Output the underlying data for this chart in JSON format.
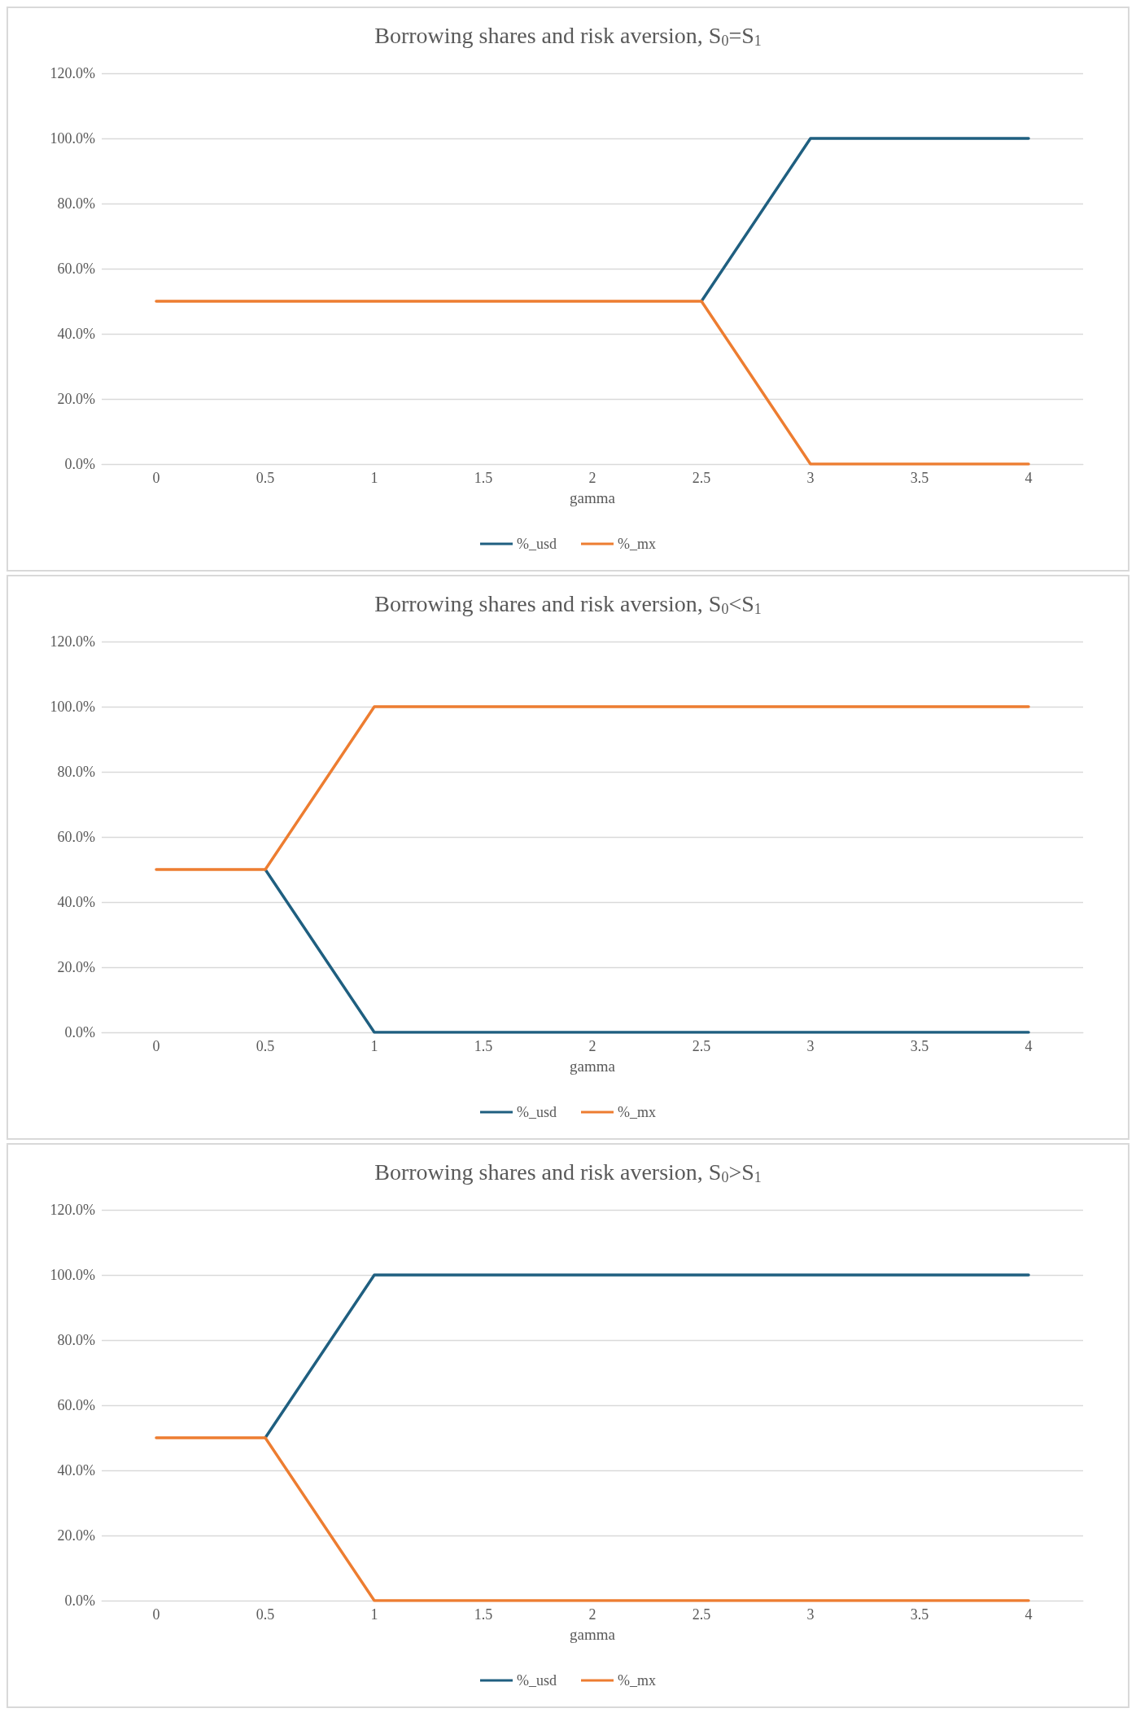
{
  "chart_data": [
    {
      "type": "line",
      "title": "Borrowing shares and risk aversion, S$_{0}$=S$_{1}$",
      "xlabel": "gamma",
      "categories": [
        "0",
        "0.5",
        "1",
        "1.5",
        "2",
        "2.5",
        "3",
        "3.5",
        "4"
      ],
      "series": [
        {
          "name": "%_usd",
          "color": "#1f5f80",
          "values": [
            null,
            null,
            null,
            null,
            null,
            50,
            100,
            100,
            100
          ]
        },
        {
          "name": "%_mx",
          "color": "#ed7d31",
          "values": [
            50,
            50,
            50,
            50,
            50,
            50,
            0,
            0,
            0
          ]
        }
      ],
      "ylim": [
        0,
        120
      ],
      "yticks": [
        {
          "value": 0,
          "label": "0.0%"
        },
        {
          "value": 20,
          "label": "20.0%"
        },
        {
          "value": 40,
          "label": "40.0%"
        },
        {
          "value": 60,
          "label": "60.0%"
        },
        {
          "value": 80,
          "label": "80.0%"
        },
        {
          "value": 100,
          "label": "100.0%"
        },
        {
          "value": 120,
          "label": "120.0%"
        }
      ],
      "grid": "y",
      "legend": "bottom",
      "marker": "none",
      "line_style": "solid"
    },
    {
      "type": "line",
      "title": "Borrowing shares and risk aversion, S$_{0}$<S$_{1}$",
      "xlabel": "gamma",
      "categories": [
        "0",
        "0.5",
        "1",
        "1.5",
        "2",
        "2.5",
        "3",
        "3.5",
        "4"
      ],
      "series": [
        {
          "name": "%_usd",
          "color": "#1f5f80",
          "values": [
            null,
            50,
            0,
            0,
            0,
            0,
            0,
            0,
            0
          ]
        },
        {
          "name": "%_mx",
          "color": "#ed7d31",
          "values": [
            50,
            50,
            100,
            100,
            100,
            100,
            100,
            100,
            100
          ]
        }
      ],
      "ylim": [
        0,
        120
      ],
      "yticks": [
        {
          "value": 0,
          "label": "0.0%"
        },
        {
          "value": 20,
          "label": "20.0%"
        },
        {
          "value": 40,
          "label": "40.0%"
        },
        {
          "value": 60,
          "label": "60.0%"
        },
        {
          "value": 80,
          "label": "80.0%"
        },
        {
          "value": 100,
          "label": "100.0%"
        },
        {
          "value": 120,
          "label": "120.0%"
        }
      ],
      "grid": "y",
      "legend": "bottom",
      "marker": "none",
      "line_style": "solid"
    },
    {
      "type": "line",
      "title": "Borrowing shares and risk aversion, S$_{0}$>S$_{1}$",
      "xlabel": "gamma",
      "categories": [
        "0",
        "0.5",
        "1",
        "1.5",
        "2",
        "2.5",
        "3",
        "3.5",
        "4"
      ],
      "series": [
        {
          "name": "%_usd",
          "color": "#1f5f80",
          "values": [
            null,
            50,
            100,
            100,
            100,
            100,
            100,
            100,
            100
          ]
        },
        {
          "name": "%_mx",
          "color": "#ed7d31",
          "values": [
            50,
            50,
            0,
            0,
            0,
            0,
            0,
            0,
            0
          ]
        }
      ],
      "ylim": [
        0,
        120
      ],
      "yticks": [
        {
          "value": 0,
          "label": "0.0%"
        },
        {
          "value": 20,
          "label": "20.0%"
        },
        {
          "value": 40,
          "label": "40.0%"
        },
        {
          "value": 60,
          "label": "60.0%"
        },
        {
          "value": 80,
          "label": "80.0%"
        },
        {
          "value": 100,
          "label": "100.0%"
        },
        {
          "value": 120,
          "label": "120.0%"
        }
      ],
      "grid": "y",
      "legend": "bottom",
      "marker": "none",
      "line_style": "solid"
    }
  ]
}
